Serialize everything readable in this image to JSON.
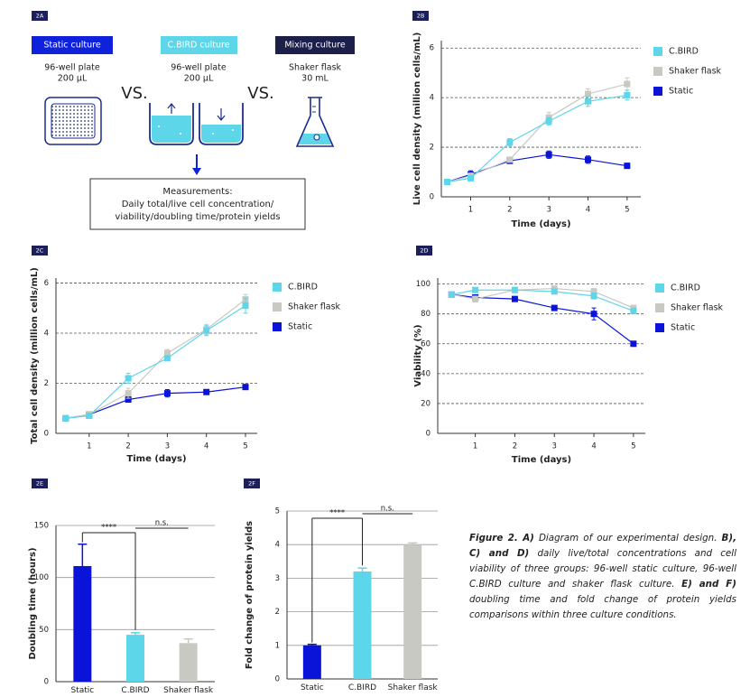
{
  "diagram": {
    "panel": "2A",
    "groups": [
      {
        "title": "Static culture",
        "vessel": "96-well plate",
        "volume": "200 µL"
      },
      {
        "title": "C.BIRD culture",
        "vessel": "96-well plate",
        "volume": "200 µL"
      },
      {
        "title": "Mixing culture",
        "vessel": "Shaker flask",
        "volume": "30 mL"
      }
    ],
    "versus": [
      "VS.",
      "VS."
    ],
    "measurements": [
      "Measurements:",
      "Daily total/live cell concentration/",
      "viability/doubling time/protein yields"
    ]
  },
  "chart_data": [
    {
      "type": "line",
      "panel": "2B",
      "xlabel": "Time (days)",
      "ylabel": "Live cell density (million cells/mL)",
      "x": [
        0.4,
        1,
        2,
        3,
        4,
        5
      ],
      "xlim": [
        0.25,
        5.35
      ],
      "xticks": [
        1,
        2,
        3,
        4,
        5
      ],
      "ylim": [
        0,
        6.3
      ],
      "yticks": [
        0,
        2,
        4,
        6
      ],
      "grid": true,
      "series": [
        {
          "name": "C.BIRD",
          "color": "#5cd6e8",
          "values": [
            0.6,
            0.75,
            2.2,
            3.05,
            3.85,
            4.1
          ],
          "errors": [
            0.05,
            0.1,
            0.15,
            0.15,
            0.2,
            0.2
          ]
        },
        {
          "name": "Shaker flask",
          "color": "#c9c9c3",
          "values": [
            0.6,
            0.85,
            1.5,
            3.2,
            4.15,
            4.55
          ],
          "errors": [
            0.05,
            0.1,
            0.1,
            0.2,
            0.2,
            0.25
          ]
        },
        {
          "name": "Static",
          "color": "#0a14d8",
          "values": [
            0.6,
            0.9,
            1.45,
            1.7,
            1.5,
            1.25
          ],
          "errors": [
            0.05,
            0.15,
            0.1,
            0.15,
            0.15,
            0.1
          ]
        }
      ]
    },
    {
      "type": "line",
      "panel": "2C",
      "xlabel": "Time (days)",
      "ylabel": "Total cell density (million cells/mL)",
      "x": [
        0.4,
        1,
        2,
        3,
        4,
        5
      ],
      "xlim": [
        0.15,
        5.3
      ],
      "xticks": [
        1,
        2,
        3,
        4,
        5
      ],
      "ylim": [
        0,
        6.2
      ],
      "yticks": [
        0,
        2,
        4,
        6
      ],
      "grid": true,
      "series": [
        {
          "name": "C.BIRD",
          "color": "#5cd6e8",
          "values": [
            0.6,
            0.7,
            2.2,
            3.0,
            4.1,
            5.1
          ],
          "errors": [
            0.05,
            0.05,
            0.2,
            0.1,
            0.2,
            0.3
          ]
        },
        {
          "name": "Shaker flask",
          "color": "#c9c9c3",
          "values": [
            0.6,
            0.75,
            1.6,
            3.2,
            4.15,
            5.35
          ],
          "errors": [
            0.05,
            0.05,
            0.2,
            0.15,
            0.2,
            0.2
          ]
        },
        {
          "name": "Static",
          "color": "#0a14d8",
          "values": [
            0.6,
            0.75,
            1.35,
            1.6,
            1.65,
            1.85
          ],
          "errors": [
            0.05,
            0.05,
            0.1,
            0.15,
            0.1,
            0.1
          ]
        }
      ]
    },
    {
      "type": "line",
      "panel": "2D",
      "xlabel": "Time (days)",
      "ylabel": "Viability (%)",
      "x": [
        0.4,
        1,
        2,
        3,
        4,
        5
      ],
      "xlim": [
        0.05,
        5.3
      ],
      "xticks": [
        1,
        2,
        3,
        4,
        5
      ],
      "ylim": [
        0,
        104
      ],
      "yticks": [
        0,
        20,
        40,
        60,
        80,
        100
      ],
      "grid": true,
      "series": [
        {
          "name": "C.BIRD",
          "color": "#5cd6e8",
          "values": [
            93,
            96,
            96,
            95,
            92,
            82
          ],
          "errors": [
            1,
            1,
            1,
            1,
            2,
            1
          ]
        },
        {
          "name": "Shaker flask",
          "color": "#c9c9c3",
          "values": [
            93,
            90,
            96,
            97,
            95,
            84
          ],
          "errors": [
            1,
            2,
            1,
            1,
            2,
            1
          ]
        },
        {
          "name": "Static",
          "color": "#0a14d8",
          "values": [
            93,
            91,
            90,
            84,
            80,
            60
          ],
          "errors": [
            1,
            1,
            1,
            1,
            4,
            1
          ]
        }
      ]
    },
    {
      "type": "bar",
      "panel": "2E",
      "ylabel": "Doubling time (hours)",
      "categories": [
        "Static",
        "C.BIRD",
        "Shaker flask"
      ],
      "colors": [
        "#0a14d8",
        "#5cd6e8",
        "#c9c9c3"
      ],
      "values": [
        111,
        45,
        37
      ],
      "errors": [
        21,
        2,
        4
      ],
      "ylim": [
        0,
        150
      ],
      "yticks": [
        0,
        50,
        100,
        150
      ],
      "grid": true,
      "annotations": [
        {
          "text": "****",
          "between": [
            0,
            1
          ],
          "style": "bracket"
        },
        {
          "text": "n.s.",
          "between": [
            1,
            2
          ],
          "style": "line"
        }
      ]
    },
    {
      "type": "bar",
      "panel": "2F",
      "ylabel": "Fold change of protein yields",
      "categories": [
        "Static",
        "C.BIRD",
        "Shaker flask"
      ],
      "colors": [
        "#0a14d8",
        "#5cd6e8",
        "#c9c9c3"
      ],
      "values": [
        1.0,
        3.2,
        4.0
      ],
      "errors": [
        0.03,
        0.1,
        0.05
      ],
      "ylim": [
        0,
        5
      ],
      "yticks": [
        0,
        1,
        2,
        3,
        4,
        5
      ],
      "grid": true,
      "annotations": [
        {
          "text": "****",
          "between": [
            0,
            1
          ],
          "style": "bracket"
        },
        {
          "text": "n.s.",
          "between": [
            1,
            2
          ],
          "style": "line"
        }
      ]
    }
  ],
  "caption": [
    {
      "text": "Figure 2. A)",
      "bold": true
    },
    {
      "text": "Diagram of our experimental design.",
      "bold": false
    },
    {
      "text": "B), C) and D)",
      "bold": true
    },
    {
      "text": "daily live/total concentrations and cell viability of three groups: 96-well static culture, 96-well C.BIRD culture and shaker flask culture.",
      "bold": false
    },
    {
      "text": "E) and F)",
      "bold": true
    },
    {
      "text": "doubling time and fold change of protein yields comparisons within three culture conditions.",
      "bold": false
    }
  ]
}
